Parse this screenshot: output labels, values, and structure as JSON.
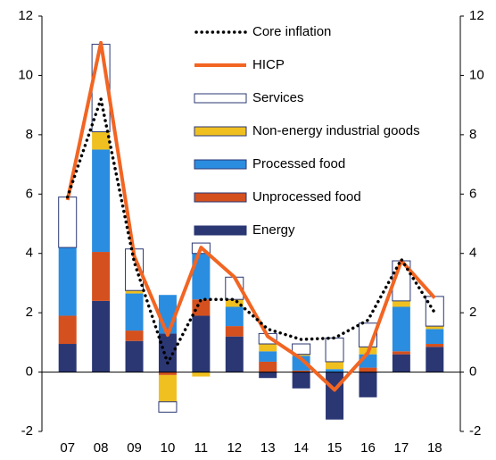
{
  "chart_data": {
    "type": "bar",
    "categories": [
      "07",
      "08",
      "09",
      "10",
      "11",
      "12",
      "13",
      "14",
      "15",
      "16",
      "17",
      "18"
    ],
    "series": [
      {
        "name": "Energy",
        "type": "bar",
        "color": "#2b3773",
        "values": [
          0.95,
          2.4,
          1.05,
          1.3,
          1.9,
          1.2,
          -0.2,
          -0.55,
          -1.6,
          -0.85,
          0.6,
          0.85
        ]
      },
      {
        "name": "Unprocessed food",
        "type": "bar",
        "color": "#d4501e",
        "values": [
          0.95,
          1.65,
          0.35,
          -0.1,
          0.55,
          0.35,
          0.35,
          0.05,
          0,
          0.15,
          0.1,
          0.1
        ]
      },
      {
        "name": "Processed food",
        "type": "bar",
        "color": "#2a8de0",
        "values": [
          2.3,
          3.45,
          1.25,
          1.3,
          1.55,
          0.65,
          0.35,
          0.5,
          0.1,
          0.45,
          1.5,
          0.5
        ]
      },
      {
        "name": "Non-energy industrial goods",
        "type": "bar",
        "color": "#f0c020",
        "values": [
          0,
          0.6,
          0.1,
          -0.9,
          -0.15,
          0.25,
          0.25,
          0.05,
          0.25,
          0.25,
          0.2,
          0.1
        ]
      },
      {
        "name": "Services",
        "type": "bar",
        "color": "#ffffff",
        "values": [
          1.7,
          2.95,
          1.4,
          -0.35,
          0.35,
          0.75,
          0.35,
          0.35,
          0.8,
          0.8,
          1.35,
          1.0
        ]
      },
      {
        "name": "HICP",
        "type": "line",
        "color": "#f26522",
        "values": [
          5.8,
          11.1,
          3.9,
          1.25,
          4.2,
          3.2,
          1.2,
          0.45,
          -0.6,
          0.65,
          3.75,
          2.5
        ]
      },
      {
        "name": "Core inflation",
        "type": "dotted",
        "color": "#000000",
        "values": [
          5.9,
          9.2,
          3.7,
          0.3,
          2.45,
          2.45,
          1.45,
          1.1,
          1.15,
          1.75,
          3.8,
          2.0
        ]
      }
    ],
    "ylim": [
      -2,
      12
    ],
    "yticks": [
      -2,
      0,
      2,
      4,
      6,
      8,
      10,
      12
    ],
    "y2lim": [
      -2,
      12
    ],
    "y2ticks": [
      -2,
      0,
      2,
      4,
      6,
      8,
      10,
      12
    ]
  }
}
